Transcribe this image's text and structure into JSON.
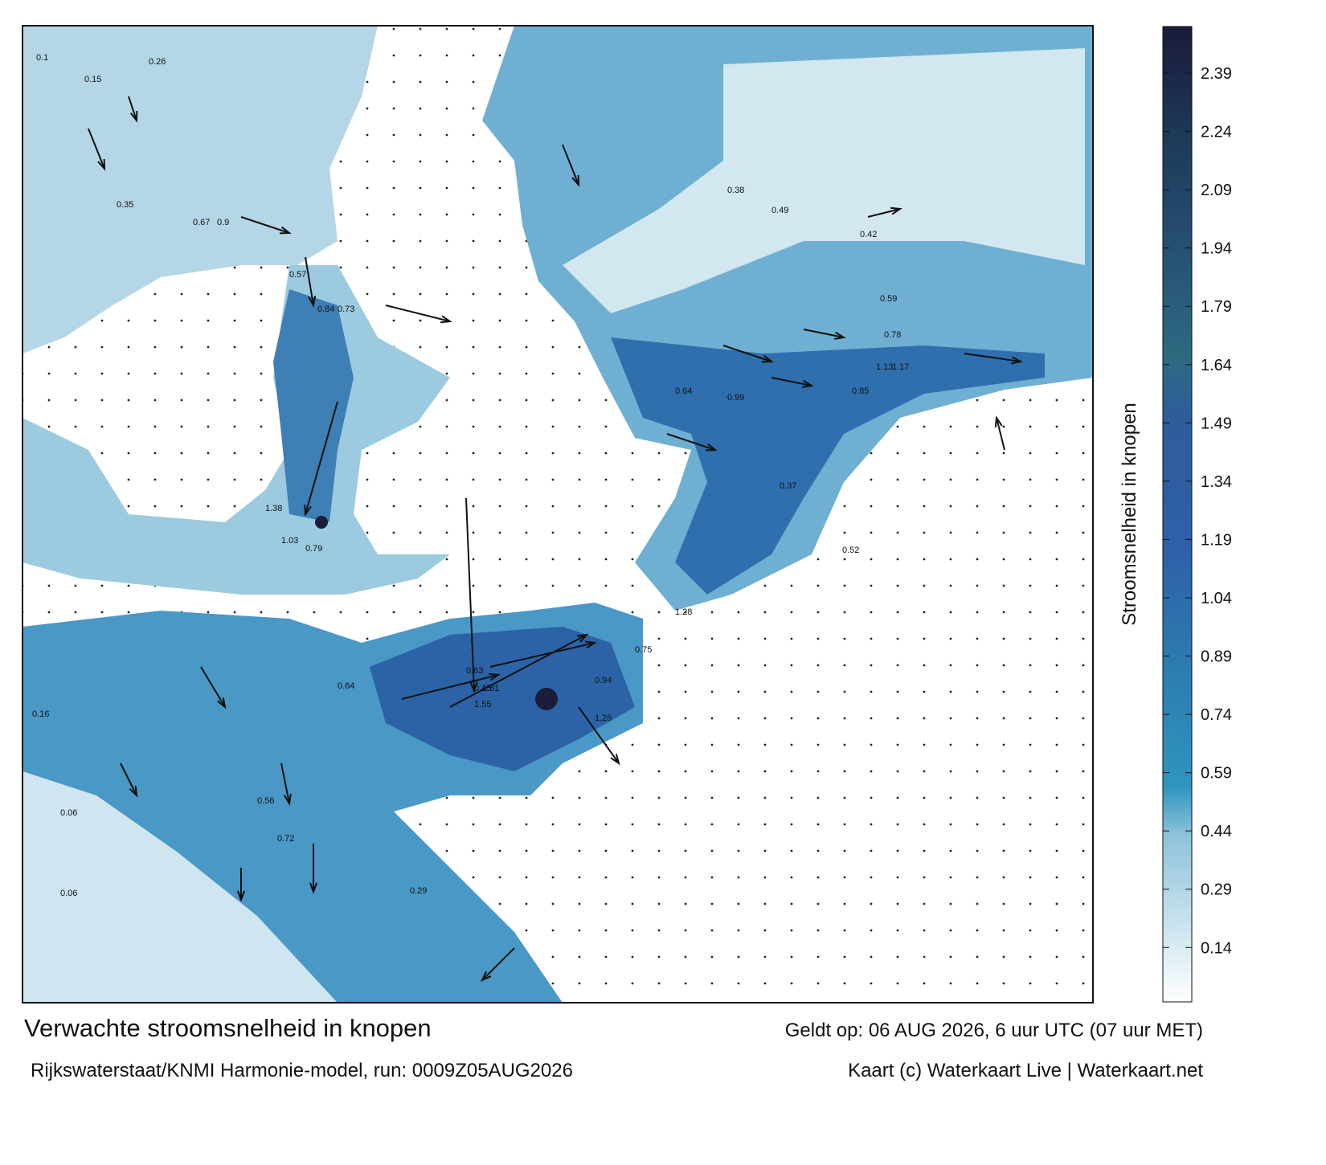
{
  "footer": {
    "title": "Verwachte stroomsnelheid in knopen",
    "model": "Rijkswaterstaat/KNMI Harmonie-model, run: 0009Z05AUG2026",
    "valid": "Geldt op: 06 AUG 2026, 6 uur UTC (07 uur MET)",
    "credit": "Kaart (c) Waterkaart Live | Waterkaart.net"
  },
  "colorbar": {
    "label": "Stroomsnelheid in knopen",
    "range": [
      0,
      2.51
    ],
    "ticks": [
      0.14,
      0.29,
      0.44,
      0.59,
      0.74,
      0.89,
      1.04,
      1.19,
      1.34,
      1.49,
      1.64,
      1.79,
      1.94,
      2.09,
      2.24,
      2.39
    ]
  },
  "map": {
    "labels": [
      0.1,
      0.15,
      0.26,
      0.35,
      0.67,
      0.9,
      0.57,
      0.84,
      0.73,
      1.38,
      1.03,
      0.79,
      0.63,
      0.45,
      0.64,
      1.81,
      1.55,
      1.25,
      0.94,
      0.75,
      1.28,
      0.64,
      0.49,
      0.38,
      0.42,
      0.59,
      0.78,
      1.13,
      1.17,
      0.85,
      0.99,
      0.52,
      0.37,
      0.06,
      0.06,
      0.29,
      0.16,
      0.56,
      0.72
    ]
  }
}
